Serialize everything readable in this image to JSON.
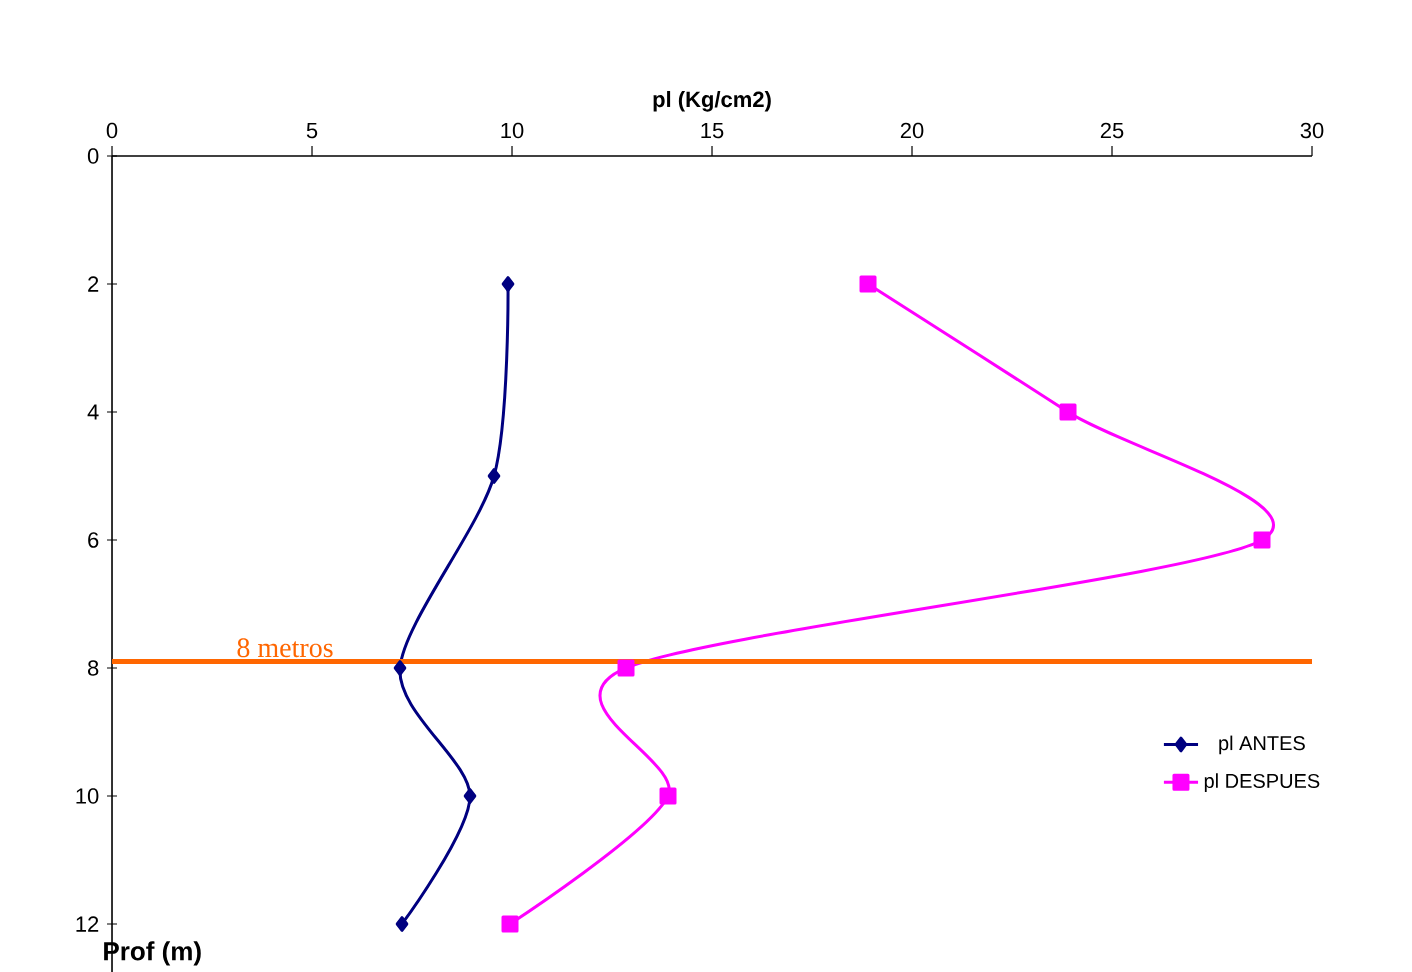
{
  "chart_data": {
    "type": "line",
    "xlabel": "pl (Kg/cm2)",
    "ylabel": "Prof (m)",
    "xlim": [
      0,
      30
    ],
    "xticks": [
      0,
      5,
      10,
      15,
      20,
      25,
      30
    ],
    "ylim": [
      12.75,
      0
    ],
    "yticks": [
      0,
      2,
      4,
      6,
      8,
      10,
      12
    ],
    "legend": "right",
    "grid": false,
    "series": [
      {
        "name": "pl ANTES",
        "color": "#000080",
        "marker": "diamond",
        "x": [
          9.9,
          9.55,
          7.2,
          8.95,
          7.25
        ],
        "values": [
          2,
          5,
          8,
          10,
          12
        ]
      },
      {
        "name": "pl DESPUES",
        "color": "#ff00ff",
        "marker": "square",
        "x": [
          18.9,
          23.9,
          28.75,
          12.85,
          13.9,
          9.95
        ],
        "values": [
          2,
          4,
          6,
          8,
          10,
          12
        ]
      }
    ],
    "ref_lines": [
      {
        "axis": "y",
        "value": 7.9,
        "label": "8 metros",
        "color": "#ff6600"
      }
    ]
  }
}
